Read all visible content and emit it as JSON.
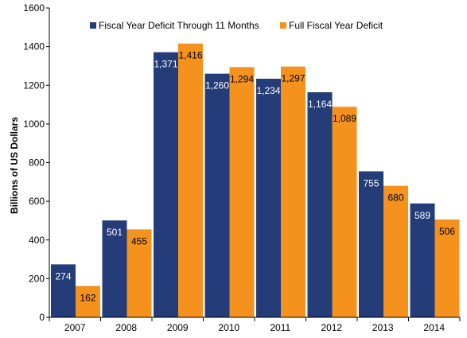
{
  "chart_data": {
    "type": "bar",
    "categories": [
      "2007",
      "2008",
      "2009",
      "2010",
      "2011",
      "2012",
      "2013",
      "2014"
    ],
    "series": [
      {
        "name": "Fiscal Year Deficit Through 11 Months",
        "color": "#243C78",
        "label_color": "#ffffff",
        "values": [
          274,
          501,
          1371,
          1260,
          1234,
          1164,
          755,
          589
        ],
        "labels": [
          "274",
          "501",
          "1,371",
          "1,260",
          "1,234",
          "1,164",
          "755",
          "589"
        ]
      },
      {
        "name": "Full Fiscal Year Deficit",
        "color": "#F5921E",
        "label_color": "#000000",
        "values": [
          162,
          455,
          1416,
          1294,
          1297,
          1089,
          680,
          506
        ],
        "labels": [
          "162",
          "455",
          "1,416",
          "1,294",
          "1,297",
          "1,089",
          "680",
          "506"
        ]
      }
    ],
    "ylabel": "Billions of US Dollars",
    "xlabel": "",
    "ylim": [
      0,
      1600
    ],
    "yticks": [
      "0",
      "200",
      "400",
      "600",
      "800",
      "1000",
      "1200",
      "1400",
      "1600"
    ],
    "grid": false,
    "legend_position": "top"
  }
}
